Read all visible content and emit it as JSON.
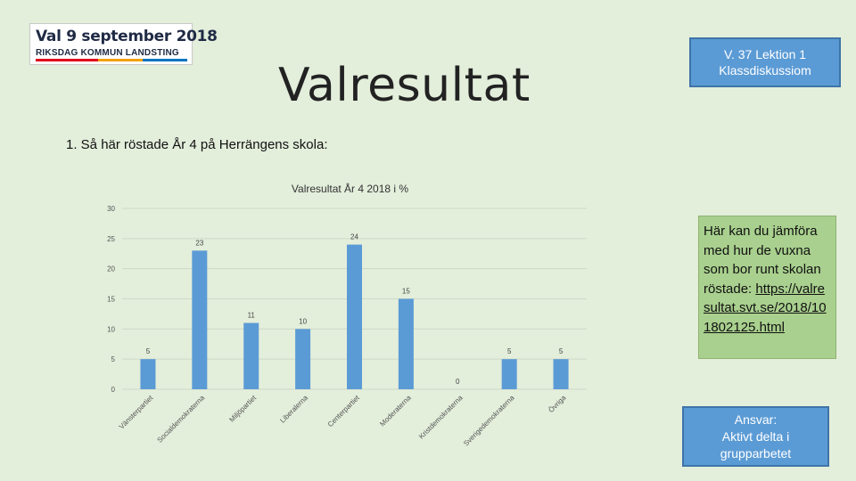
{
  "logo": {
    "line1": "Val 9 september 2018",
    "line2": "RIKSDAG KOMMUN LANDSTING"
  },
  "title": "Valresultat",
  "lesson_box": {
    "line1": "V. 37 Lektion 1",
    "line2": "Klassdiskussiom"
  },
  "question": "1. Så här röstade År 4 på Herrängens skola:",
  "note": {
    "text": "Här kan du jämföra med hur de vuxna som bor runt skolan röstade:",
    "link": "https://valresultat.svt.se/2018/101802125.html"
  },
  "responsibility": {
    "line1": "Ansvar:",
    "line2": "Aktivt delta i",
    "line3": "grupparbetet"
  },
  "chart_data": {
    "type": "bar",
    "title": "Valresultat År 4 2018 i %",
    "categories": [
      "Vänsterpartiet",
      "Socialdemokraterna",
      "Miljöpartiet",
      "Liberalerna",
      "Centerpartiet",
      "Moderaterna",
      "Kristdemokraterna",
      "Sverigedemokraterna",
      "Övriga"
    ],
    "values": [
      5,
      23,
      11,
      10,
      24,
      15,
      0,
      5,
      5
    ],
    "ylim": [
      0,
      30
    ],
    "yticks": [
      0,
      5,
      10,
      15,
      20,
      25,
      30
    ],
    "grid": true,
    "bar_color": "#5b9bd5"
  }
}
